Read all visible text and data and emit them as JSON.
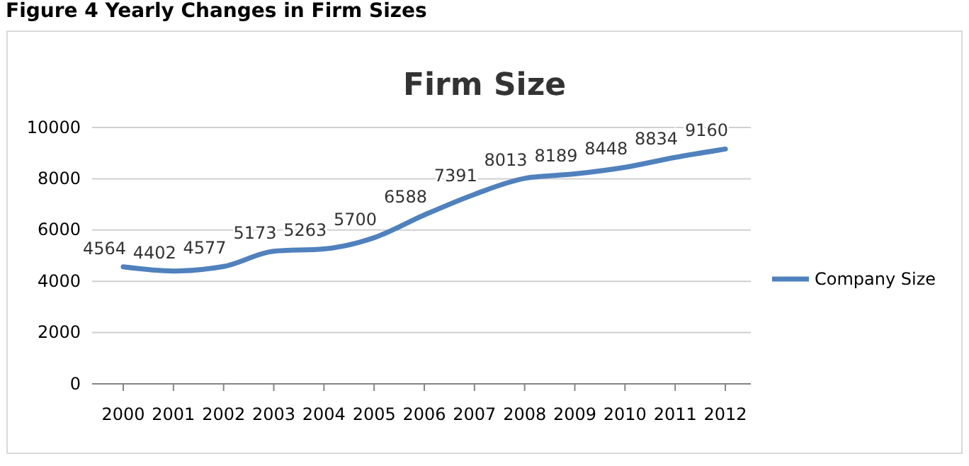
{
  "chart_data": {
    "type": "line",
    "title": "Firm Size",
    "annotations": [
      "Figure 4 Yearly Changes in Firm Sizes"
    ],
    "categories": [
      "2000",
      "2001",
      "2002",
      "2003",
      "2004",
      "2005",
      "2006",
      "2007",
      "2008",
      "2009",
      "2010",
      "2011",
      "2012"
    ],
    "series": [
      {
        "name": "Company Size",
        "color": "#4f81bd",
        "values": [
          4564,
          4402,
          4577,
          5173,
          5263,
          5700,
          6588,
          7391,
          8013,
          8189,
          8448,
          8834,
          9160
        ]
      }
    ],
    "ylim": [
      0,
      10000
    ],
    "yticks": [
      0,
      2000,
      4000,
      6000,
      8000,
      10000
    ],
    "grid": "y",
    "legend": "right",
    "data_labels": true,
    "marker": "none",
    "line_style": "solid"
  }
}
